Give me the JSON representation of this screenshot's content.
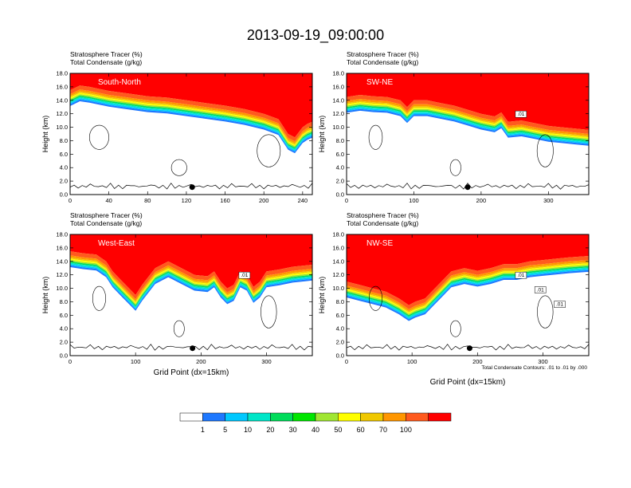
{
  "title": "2013-09-19_09:00:00",
  "colors": [
    "#ffffff",
    "#1e78ff",
    "#00c8ff",
    "#00e6c8",
    "#00dc5a",
    "#00e600",
    "#a0e632",
    "#ffff00",
    "#f0c800",
    "#ff9600",
    "#ff5a1e",
    "#ff0000"
  ],
  "colorbar": {
    "labels": [
      "1",
      "5",
      "10",
      "20",
      "30",
      "40",
      "50",
      "60",
      "70",
      "100"
    ]
  },
  "note": "Total Condensate Contours: .01 to .01 by .000",
  "chart_data": [
    {
      "type": "contour",
      "name": "South-North",
      "title_lines": [
        "Stratosphere Tracer   (%)",
        "Total Condensate   (g/kg)"
      ],
      "ylabel": "Height (km)",
      "xlabel": "",
      "xlim": [
        0,
        250
      ],
      "ylim": [
        0,
        18
      ],
      "xticks": [
        0,
        40,
        80,
        120,
        160,
        200,
        240
      ],
      "yticks": [
        "0.0",
        "2.0",
        "4.0",
        "6.0",
        "8.0",
        "10.0",
        "12.0",
        "14.0",
        "16.0",
        "18.0"
      ],
      "interface_km": [
        [
          0,
          15.5
        ],
        [
          10,
          16.2
        ],
        [
          20,
          16.0
        ],
        [
          40,
          15.4
        ],
        [
          60,
          15.0
        ],
        [
          80,
          14.6
        ],
        [
          100,
          14.4
        ],
        [
          120,
          14.0
        ],
        [
          140,
          13.6
        ],
        [
          160,
          13.2
        ],
        [
          180,
          12.7
        ],
        [
          200,
          12.0
        ],
        [
          215,
          11.2
        ],
        [
          225,
          9.0
        ],
        [
          232,
          8.5
        ],
        [
          240,
          10.0
        ],
        [
          245,
          10.5
        ],
        [
          250,
          10.8
        ]
      ],
      "dot": [
        126,
        1.1
      ],
      "box_labels": []
    },
    {
      "type": "contour",
      "name": "SW-NE",
      "title_lines": [
        "Stratosphere Tracer   (%)",
        "Total Condensate   (g/kg)"
      ],
      "ylabel": "Height (km)",
      "xlabel": "",
      "xlim": [
        0,
        360
      ],
      "ylim": [
        0,
        18
      ],
      "xticks": [
        0,
        100,
        200,
        300
      ],
      "yticks": [
        "0.0",
        "2.0",
        "4.0",
        "6.0",
        "8.0",
        "10.0",
        "12.0",
        "14.0",
        "16.0",
        "18.0"
      ],
      "interface_km": [
        [
          0,
          14.5
        ],
        [
          20,
          14.8
        ],
        [
          40,
          14.6
        ],
        [
          60,
          14.5
        ],
        [
          80,
          14.0
        ],
        [
          90,
          13.0
        ],
        [
          100,
          14.0
        ],
        [
          120,
          14.0
        ],
        [
          140,
          13.6
        ],
        [
          160,
          13.2
        ],
        [
          180,
          12.6
        ],
        [
          200,
          12.0
        ],
        [
          220,
          11.6
        ],
        [
          230,
          12.2
        ],
        [
          240,
          10.8
        ],
        [
          260,
          11.0
        ],
        [
          280,
          10.6
        ],
        [
          300,
          10.2
        ],
        [
          320,
          10.0
        ],
        [
          340,
          9.8
        ],
        [
          360,
          9.6
        ]
      ],
      "dot": [
        180,
        1.1
      ],
      "box_labels": [
        ".01"
      ]
    },
    {
      "type": "contour",
      "name": "West-East",
      "title_lines": [
        "Stratosphere Tracer   (%)",
        "Total Condensate   (g/kg)"
      ],
      "ylabel": "Height (km)",
      "xlabel": "Grid Point (dx=15km)",
      "xlim": [
        0,
        370
      ],
      "ylim": [
        0,
        18
      ],
      "xticks": [
        0,
        100,
        200,
        300
      ],
      "yticks": [
        "0.0",
        "2.0",
        "4.0",
        "6.0",
        "8.0",
        "10.0",
        "12.0",
        "14.0",
        "16.0",
        "18.0"
      ],
      "interface_km": [
        [
          0,
          15.5
        ],
        [
          20,
          15.2
        ],
        [
          40,
          15.0
        ],
        [
          55,
          14.0
        ],
        [
          65,
          12.5
        ],
        [
          80,
          11.0
        ],
        [
          100,
          9.0
        ],
        [
          110,
          10.5
        ],
        [
          130,
          13.0
        ],
        [
          150,
          14.0
        ],
        [
          170,
          13.0
        ],
        [
          190,
          12.0
        ],
        [
          210,
          11.8
        ],
        [
          220,
          12.5
        ],
        [
          230,
          11.0
        ],
        [
          240,
          10.0
        ],
        [
          250,
          10.5
        ],
        [
          260,
          12.5
        ],
        [
          270,
          12.0
        ],
        [
          280,
          10.2
        ],
        [
          290,
          11.0
        ],
        [
          300,
          12.5
        ],
        [
          320,
          12.8
        ],
        [
          340,
          13.2
        ],
        [
          370,
          13.5
        ]
      ],
      "dot": [
        187,
        1.1
      ],
      "box_labels": [
        ".01"
      ]
    },
    {
      "type": "contour",
      "name": "NW-SE",
      "title_lines": [
        "Stratosphere Tracer   (%)",
        "Total Condensate   (g/kg)"
      ],
      "ylabel": "Height (km)",
      "xlabel": "Grid Point (dx=15km)",
      "xlim": [
        0,
        370
      ],
      "ylim": [
        0,
        18
      ],
      "xticks": [
        0,
        100,
        200,
        300
      ],
      "yticks": [
        "0.0",
        "2.0",
        "4.0",
        "6.0",
        "8.0",
        "10.0",
        "12.0",
        "14.0",
        "16.0",
        "18.0"
      ],
      "interface_km": [
        [
          0,
          11.0
        ],
        [
          20,
          10.5
        ],
        [
          40,
          10.0
        ],
        [
          60,
          9.5
        ],
        [
          80,
          8.5
        ],
        [
          95,
          7.5
        ],
        [
          105,
          8.0
        ],
        [
          120,
          8.5
        ],
        [
          140,
          10.5
        ],
        [
          160,
          12.5
        ],
        [
          180,
          13.0
        ],
        [
          200,
          12.6
        ],
        [
          220,
          13.0
        ],
        [
          240,
          13.6
        ],
        [
          260,
          13.6
        ],
        [
          280,
          14.0
        ],
        [
          300,
          14.2
        ],
        [
          320,
          14.4
        ],
        [
          340,
          14.6
        ],
        [
          370,
          14.8
        ]
      ],
      "dot": [
        188,
        1.1
      ],
      "box_labels": [
        ".01",
        ".01",
        ".01"
      ]
    }
  ]
}
